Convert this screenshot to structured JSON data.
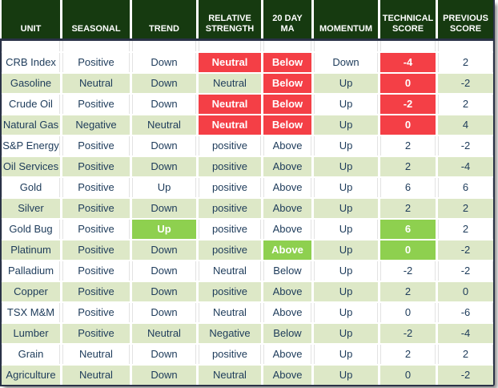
{
  "colors": {
    "header_bg": "#163a10",
    "row_alt_bg": "#dde8c7",
    "negative_bg": "#f43f46",
    "positive_bg": "#8ed04f",
    "text": "#1d3b5a",
    "border": "#2a3247"
  },
  "header": {
    "columns": [
      "UNIT",
      "SEASONAL",
      "TREND",
      "RELATIVE\nSTRENGTH",
      "20 DAY\nMA",
      "MOMENTUM",
      "TECHNICAL\nSCORE",
      "PREVIOUS\nSCORE"
    ]
  },
  "table": {
    "rows": [
      {
        "values": [
          "CRB Index",
          "Positive",
          "Down",
          "Neutral",
          "Below",
          "Down",
          "-4",
          "2"
        ],
        "marks": {
          "3": "red",
          "4": "red",
          "6": "red"
        }
      },
      {
        "values": [
          "Gasoline",
          "Neutral",
          "Down",
          "Neutral",
          "Below",
          "Up",
          "0",
          "-2"
        ],
        "marks": {
          "4": "red",
          "6": "red"
        }
      },
      {
        "values": [
          "Crude Oil",
          "Positive",
          "Down",
          "Neutral",
          "Below",
          "Up",
          "-2",
          "2"
        ],
        "marks": {
          "3": "red",
          "4": "red",
          "6": "red"
        }
      },
      {
        "values": [
          "Natural Gas",
          "Negative",
          "Neutral",
          "Neutral",
          "Below",
          "Up",
          "0",
          "4"
        ],
        "marks": {
          "3": "red",
          "4": "red",
          "6": "red"
        }
      },
      {
        "values": [
          "S&P Energy",
          "Positive",
          "Down",
          "positive",
          "Above",
          "Up",
          "2",
          "-2"
        ],
        "marks": {}
      },
      {
        "values": [
          "Oil Services",
          "Positive",
          "Down",
          "positive",
          "Above",
          "Up",
          "2",
          "-4"
        ],
        "marks": {}
      },
      {
        "values": [
          "Gold",
          "Positive",
          "Up",
          "positive",
          "Above",
          "Up",
          "6",
          "6"
        ],
        "marks": {}
      },
      {
        "values": [
          "Silver",
          "Positive",
          "Down",
          "positive",
          "Above",
          "Up",
          "2",
          "2"
        ],
        "marks": {}
      },
      {
        "values": [
          "Gold Bug",
          "Positive",
          "Up",
          "positive",
          "Above",
          "Up",
          "6",
          "2"
        ],
        "marks": {
          "2": "green",
          "6": "green"
        }
      },
      {
        "values": [
          "Platinum",
          "Positive",
          "Down",
          "positive",
          "Above",
          "Up",
          "0",
          "-2"
        ],
        "marks": {
          "4": "green",
          "6": "green"
        }
      },
      {
        "values": [
          "Palladium",
          "Positive",
          "Down",
          "Neutral",
          "Below",
          "Up",
          "-2",
          "-2"
        ],
        "marks": {}
      },
      {
        "values": [
          "Copper",
          "Positive",
          "Down",
          "positive",
          "Above",
          "Up",
          "2",
          "0"
        ],
        "marks": {}
      },
      {
        "values": [
          "TSX M&M",
          "Positive",
          "Down",
          "Neutral",
          "Above",
          "Up",
          "0",
          "-6"
        ],
        "marks": {}
      },
      {
        "values": [
          "Lumber",
          "Positive",
          "Neutral",
          "Negative",
          "Below",
          "Up",
          "-2",
          "-4"
        ],
        "marks": {}
      },
      {
        "values": [
          "Grain",
          "Neutral",
          "Down",
          "positive",
          "Above",
          "Up",
          "2",
          "2"
        ],
        "marks": {}
      },
      {
        "values": [
          "Agriculture",
          "Neutral",
          "Down",
          "Neutral",
          "Above",
          "Up",
          "0",
          "-2"
        ],
        "marks": {}
      }
    ]
  },
  "chart_data": {
    "type": "table",
    "title": "",
    "columns": [
      "UNIT",
      "SEASONAL",
      "TREND",
      "RELATIVE STRENGTH",
      "20 DAY MA",
      "MOMENTUM",
      "TECHNICAL SCORE",
      "PREVIOUS SCORE"
    ],
    "rows": [
      [
        "CRB Index",
        "Positive",
        "Down",
        "Neutral",
        "Below",
        "Down",
        -4,
        2
      ],
      [
        "Gasoline",
        "Neutral",
        "Down",
        "Neutral",
        "Below",
        "Up",
        0,
        -2
      ],
      [
        "Crude Oil",
        "Positive",
        "Down",
        "Neutral",
        "Below",
        "Up",
        -2,
        2
      ],
      [
        "Natural Gas",
        "Negative",
        "Neutral",
        "Neutral",
        "Below",
        "Up",
        0,
        4
      ],
      [
        "S&P Energy",
        "Positive",
        "Down",
        "positive",
        "Above",
        "Up",
        2,
        -2
      ],
      [
        "Oil Services",
        "Positive",
        "Down",
        "positive",
        "Above",
        "Up",
        2,
        -4
      ],
      [
        "Gold",
        "Positive",
        "Up",
        "positive",
        "Above",
        "Up",
        6,
        6
      ],
      [
        "Silver",
        "Positive",
        "Down",
        "positive",
        "Above",
        "Up",
        2,
        2
      ],
      [
        "Gold Bug",
        "Positive",
        "Up",
        "positive",
        "Above",
        "Up",
        6,
        2
      ],
      [
        "Platinum",
        "Positive",
        "Down",
        "positive",
        "Above",
        "Up",
        0,
        -2
      ],
      [
        "Palladium",
        "Positive",
        "Down",
        "Neutral",
        "Below",
        "Up",
        -2,
        -2
      ],
      [
        "Copper",
        "Positive",
        "Down",
        "positive",
        "Above",
        "Up",
        2,
        0
      ],
      [
        "TSX M&M",
        "Positive",
        "Down",
        "Neutral",
        "Above",
        "Up",
        0,
        -6
      ],
      [
        "Lumber",
        "Positive",
        "Neutral",
        "Negative",
        "Below",
        "Up",
        -2,
        -4
      ],
      [
        "Grain",
        "Neutral",
        "Down",
        "positive",
        "Above",
        "Up",
        2,
        2
      ],
      [
        "Agriculture",
        "Neutral",
        "Down",
        "Neutral",
        "Above",
        "Up",
        0,
        -2
      ]
    ],
    "legend": {
      "red_highlight": "negative / below signal",
      "green_highlight": "positive / above signal",
      "light_green_row": "alternating row shading"
    }
  }
}
